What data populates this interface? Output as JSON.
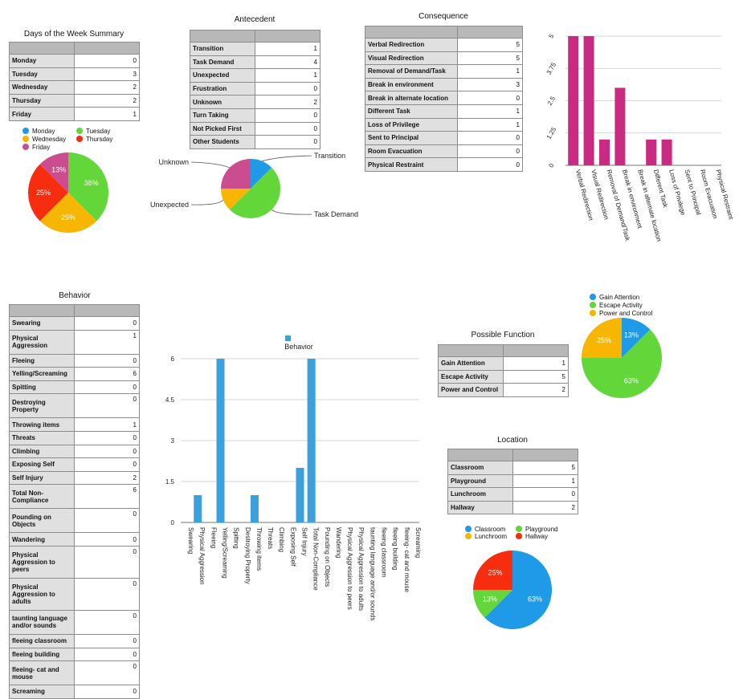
{
  "colors": {
    "blue": "#1f9ae6",
    "green": "#63d63a",
    "yellow": "#f6b602",
    "red": "#f62d0f",
    "pink": "#cc4d8f",
    "magenta": "#c92b82",
    "bar_blue": "#3ca0dc"
  },
  "days": {
    "title": "Days of the Week Summary",
    "rows": [
      {
        "k": "Monday",
        "v": "0"
      },
      {
        "k": "Tuesday",
        "v": "3"
      },
      {
        "k": "Wednesday",
        "v": "2"
      },
      {
        "k": "Thursday",
        "v": "2"
      },
      {
        "k": "Friday",
        "v": "1"
      }
    ],
    "legend": [
      "Monday",
      "Tuesday",
      "Wednesday",
      "Thursday",
      "Friday"
    ]
  },
  "antecedent": {
    "title": "Antecedent",
    "rows": [
      {
        "k": "Transition",
        "v": "1"
      },
      {
        "k": "Task Demand",
        "v": "4"
      },
      {
        "k": "Unexpected",
        "v": "1"
      },
      {
        "k": "Frustration",
        "v": "0"
      },
      {
        "k": "Unknown",
        "v": "2"
      },
      {
        "k": "Turn Taking",
        "v": "0"
      },
      {
        "k": "Not Picked First",
        "v": "0"
      },
      {
        "k": "Other Students",
        "v": "0"
      }
    ]
  },
  "consequence": {
    "title": "Consequence",
    "rows": [
      {
        "k": "Verbal Redirection",
        "v": "5"
      },
      {
        "k": "Visual Redirection",
        "v": "5"
      },
      {
        "k": "Removal of Demand/Task",
        "v": "1"
      },
      {
        "k": "Break in environment",
        "v": "3"
      },
      {
        "k": "Break in alternate location",
        "v": "0"
      },
      {
        "k": "Different Task",
        "v": "1"
      },
      {
        "k": "Loss of Privilege",
        "v": "1"
      },
      {
        "k": "Sent to Principal",
        "v": "0"
      },
      {
        "k": "Room Evacuation",
        "v": "0"
      },
      {
        "k": "Physical Restraint",
        "v": "0"
      }
    ]
  },
  "behavior": {
    "title": "Behavior",
    "rows": [
      {
        "k": "Swearing",
        "v": "0"
      },
      {
        "k": "Physical Aggression",
        "v": "1"
      },
      {
        "k": "Fleeing",
        "v": "0"
      },
      {
        "k": "Yelling/Screaming",
        "v": "6"
      },
      {
        "k": "Spitting",
        "v": "0"
      },
      {
        "k": "Destroying Property",
        "v": "0"
      },
      {
        "k": "Throwing items",
        "v": "1"
      },
      {
        "k": "Threats",
        "v": "0"
      },
      {
        "k": "Climbing",
        "v": "0"
      },
      {
        "k": "Exposing Self",
        "v": "0"
      },
      {
        "k": "Self Injury",
        "v": "2"
      },
      {
        "k": "Total Non-Compliance",
        "v": "6"
      },
      {
        "k": "Pounding on Objects",
        "v": "0"
      },
      {
        "k": "Wandering",
        "v": "0"
      },
      {
        "k": "Physical Aggression to peers",
        "v": "0"
      },
      {
        "k": "Physical Aggression to adults",
        "v": "0"
      },
      {
        "k": "taunting language and/or sounds",
        "v": "0"
      },
      {
        "k": "fleeing classroom",
        "v": "0"
      },
      {
        "k": "fleeing building",
        "v": "0"
      },
      {
        "k": "fleeing- cat and mouse",
        "v": "0"
      },
      {
        "k": "Screaming",
        "v": "0"
      }
    ]
  },
  "function": {
    "title": "Possible Function",
    "rows": [
      {
        "k": "Gain Attention",
        "v": "1"
      },
      {
        "k": "Escape Activity",
        "v": "5"
      },
      {
        "k": "Power and Control",
        "v": "2"
      }
    ],
    "legend": [
      "Gain Attention",
      "Escape Activity",
      "Power and Control"
    ]
  },
  "location": {
    "title": "Location",
    "rows": [
      {
        "k": "Classroom",
        "v": "5"
      },
      {
        "k": "Playground",
        "v": "1"
      },
      {
        "k": "Lunchroom",
        "v": "0"
      },
      {
        "k": "Hallway",
        "v": "2"
      }
    ],
    "legend": [
      "Classroom",
      "Playground",
      "Lunchroom",
      "Hallway"
    ]
  },
  "chart_data": [
    {
      "id": "days-pie",
      "type": "pie",
      "categories": [
        "Monday",
        "Tuesday",
        "Wednesday",
        "Thursday",
        "Friday"
      ],
      "values": [
        0,
        3,
        2,
        2,
        1
      ],
      "slice_labels": [
        "",
        "38%",
        "25%",
        "25%",
        "13%"
      ],
      "legend": "top"
    },
    {
      "id": "antecedent-pie",
      "type": "pie",
      "categories": [
        "Transition",
        "Task Demand",
        "Unexpected",
        "Unknown"
      ],
      "values": [
        1,
        4,
        1,
        2
      ],
      "slice_labels": [
        "Transition",
        "Task Demand",
        "Unexpected",
        "Unknown"
      ]
    },
    {
      "id": "consequence-bar",
      "type": "bar",
      "categories": [
        "Verbal Redirection",
        "Visual Redirection",
        "Removal of Demand/Task",
        "Break in environment",
        "Break in alternate location",
        "Different Task",
        "Loss of Privilege",
        "Sent to Principal",
        "Room Evacuation",
        "Physical Restraint"
      ],
      "values": [
        5,
        5,
        1,
        3,
        0,
        1,
        1,
        0,
        0,
        0
      ],
      "ylim": [
        0,
        5
      ],
      "yticks": [
        "0",
        "1.25",
        "2.5",
        "3.75",
        "5"
      ],
      "grid": true
    },
    {
      "id": "behavior-bar",
      "type": "bar",
      "title": "Behavior",
      "categories": [
        "Swearing",
        "Physical Aggression",
        "Fleeing",
        "Yelling/Screaming",
        "Spitting",
        "Destroying Property",
        "Throwing items",
        "Threats",
        "Climbing",
        "Exposing Self",
        "Self Injury",
        "Total Non-Compliance",
        "Pounding on Objects",
        "Wandering",
        "Physical Aggression to peers",
        "Physical Aggression to adults",
        "taunting language and/or sounds",
        "fleeing classroom",
        "fleeing building",
        "fleeing- cat and mouse",
        "Screaming"
      ],
      "series": [
        {
          "name": "Behavior",
          "values": [
            0,
            1,
            0,
            6,
            0,
            0,
            1,
            0,
            0,
            0,
            2,
            6,
            0,
            0,
            0,
            0,
            0,
            0,
            0,
            0,
            0
          ]
        }
      ],
      "ylim": [
        0,
        6
      ],
      "yticks": [
        "0",
        "1.5",
        "3",
        "4.5",
        "6"
      ],
      "grid": true,
      "legend": "top"
    },
    {
      "id": "function-pie",
      "type": "pie",
      "categories": [
        "Gain Attention",
        "Escape Activity",
        "Power and Control"
      ],
      "values": [
        1,
        5,
        2
      ],
      "slice_labels": [
        "13%",
        "63%",
        "25%"
      ],
      "legend": "top"
    },
    {
      "id": "location-pie",
      "type": "pie",
      "categories": [
        "Classroom",
        "Playground",
        "Lunchroom",
        "Hallway"
      ],
      "values": [
        5,
        1,
        0,
        2
      ],
      "slice_labels": [
        "63%",
        "13%",
        "",
        "25%"
      ],
      "legend": "top"
    }
  ]
}
